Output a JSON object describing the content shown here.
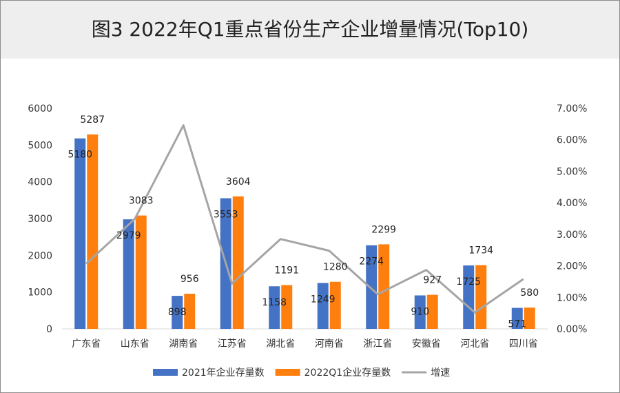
{
  "chart_data": {
    "type": "bar",
    "title": "图3  2022年Q1重点省份生产企业增量情况(Top10)",
    "categories": [
      "广东省",
      "山东省",
      "湖南省",
      "江苏省",
      "湖北省",
      "河南省",
      "浙江省",
      "安徽省",
      "河北省",
      "四川省"
    ],
    "series": [
      {
        "name": "2021年企业存量数",
        "type": "bar",
        "axis": "left",
        "color": "#4472c4",
        "values": [
          5180,
          2979,
          898,
          3553,
          1158,
          1249,
          2274,
          910,
          1725,
          571
        ]
      },
      {
        "name": "2022Q1企业存量数",
        "type": "bar",
        "axis": "left",
        "color": "#ff7f0e",
        "values": [
          5287,
          3083,
          956,
          3604,
          1191,
          1280,
          2299,
          927,
          1734,
          580
        ]
      },
      {
        "name": "增速",
        "type": "line",
        "axis": "right",
        "color": "#a5a5a5",
        "values": [
          2.07,
          3.49,
          6.46,
          1.44,
          2.85,
          2.48,
          1.1,
          1.87,
          0.52,
          1.58
        ]
      }
    ],
    "left_axis": {
      "min": 0,
      "max": 6000,
      "step": 1000,
      "ticks": [
        "0",
        "1000",
        "2000",
        "3000",
        "4000",
        "5000",
        "6000"
      ]
    },
    "right_axis": {
      "min": 0,
      "max": 7,
      "step": 1,
      "unit": "%",
      "ticks": [
        "0.00%",
        "1.00%",
        "2.00%",
        "3.00%",
        "4.00%",
        "5.00%",
        "6.00%",
        "7.00%"
      ]
    },
    "grid": false,
    "legend_position": "bottom"
  }
}
